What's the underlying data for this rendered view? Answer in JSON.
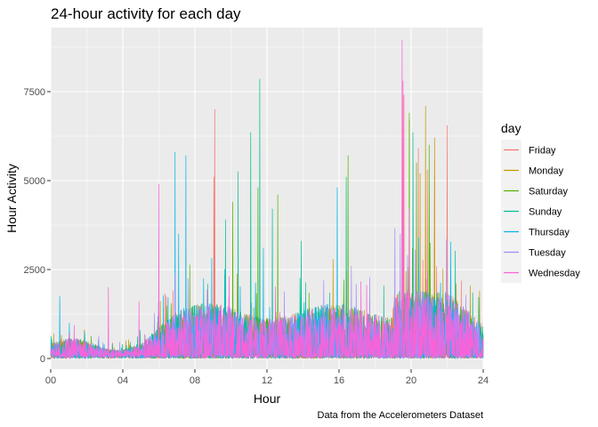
{
  "chart_data": {
    "type": "line",
    "title": "24-hour activity for each day",
    "xlabel": "Hour",
    "ylabel": "Hour Activity",
    "caption": "Data from the Accelerometers Dataset",
    "xlim": [
      0,
      24
    ],
    "ylim": [
      -300,
      9300
    ],
    "x_ticks": [
      0,
      4,
      8,
      12,
      16,
      20,
      24
    ],
    "x_tick_labels": [
      "00",
      "04",
      "08",
      "12",
      "16",
      "20",
      "24"
    ],
    "y_ticks": [
      0,
      2500,
      5000,
      7500
    ],
    "y_tick_labels": [
      "0",
      "2500",
      "5000",
      "7500"
    ],
    "grid": true,
    "legend": {
      "title": "day",
      "position": "right"
    },
    "series": [
      {
        "name": "Friday",
        "color": "#F8766D",
        "peaks": [
          [
            9.1,
            7000
          ],
          [
            19.6,
            7400
          ],
          [
            20.4,
            5900
          ],
          [
            20.9,
            5300
          ],
          [
            21.3,
            5600
          ],
          [
            22.0,
            6550
          ],
          [
            9.05,
            5100
          ]
        ]
      },
      {
        "name": "Monday",
        "color": "#C49A00",
        "peaks": [
          [
            19.9,
            6700
          ],
          [
            20.8,
            7100
          ],
          [
            21.3,
            6200
          ],
          [
            20.5,
            5200
          ],
          [
            22.5,
            2100
          ],
          [
            23.8,
            1900
          ]
        ]
      },
      {
        "name": "Saturday",
        "color": "#53B400",
        "peaks": [
          [
            16.5,
            5700
          ],
          [
            19.9,
            6900
          ],
          [
            21.0,
            6000
          ],
          [
            20.3,
            5500
          ],
          [
            10.1,
            4400
          ],
          [
            11.5,
            4800
          ],
          [
            12.6,
            4600
          ]
        ]
      },
      {
        "name": "Sunday",
        "color": "#00C094",
        "peaks": [
          [
            11.6,
            7850
          ],
          [
            11.1,
            6350
          ],
          [
            10.4,
            5250
          ],
          [
            20.1,
            6350
          ],
          [
            16.4,
            5100
          ],
          [
            9.7,
            3900
          ],
          [
            12.3,
            4200
          ],
          [
            13.9,
            3300
          ]
        ]
      },
      {
        "name": "Thursday",
        "color": "#00B6EB",
        "peaks": [
          [
            6.9,
            5800
          ],
          [
            7.5,
            5700
          ],
          [
            7.1,
            3500
          ],
          [
            0.5,
            1750
          ],
          [
            15.9,
            4800
          ],
          [
            11.8,
            3100
          ]
        ]
      },
      {
        "name": "Tuesday",
        "color": "#A58AFF",
        "peaks": [
          [
            19.1,
            3650
          ],
          [
            19.4,
            3500
          ],
          [
            6.9,
            2400
          ],
          [
            19.8,
            2900
          ]
        ]
      },
      {
        "name": "Wednesday",
        "color": "#FB61D7",
        "peaks": [
          [
            19.5,
            8950
          ],
          [
            19.55,
            7800
          ],
          [
            6.0,
            4900
          ],
          [
            3.2,
            2000
          ],
          [
            19.9,
            4200
          ],
          [
            9.9,
            2300
          ],
          [
            4.9,
            1600
          ]
        ]
      }
    ]
  }
}
